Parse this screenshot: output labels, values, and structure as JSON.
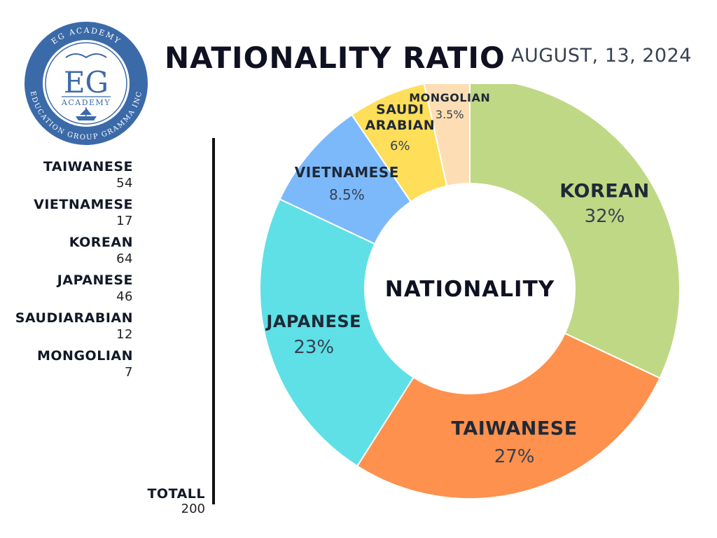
{
  "logo": {
    "ring_top_text": "EG ACADEMY",
    "ring_bottom_text": "EDUCATION GROUP GRAMMA INC",
    "monogram": "EG",
    "sub_text": "ACADEMY",
    "ring_color": "#3b6aa8"
  },
  "title": "NATIONALITY RATIO",
  "date": "AUGUST, 13, 2024",
  "legend": [
    {
      "name": "TAIWANESE",
      "value": "54"
    },
    {
      "name": "VIETNAMESE",
      "value": "17"
    },
    {
      "name": "KOREAN",
      "value": "64"
    },
    {
      "name": "JAPANESE",
      "value": "46"
    },
    {
      "name": "SAUDIARABIAN",
      "value": "12"
    },
    {
      "name": "MONGOLIAN",
      "value": "7"
    }
  ],
  "total": {
    "label": "TOTALL",
    "value": "200"
  },
  "chart_data": {
    "type": "pie",
    "center_label": "NATIONALITY",
    "slices": [
      {
        "name": "KOREAN",
        "display_name": [
          "KOREAN"
        ],
        "value": 32,
        "percent_label": "32%",
        "color": "#bfd885"
      },
      {
        "name": "TAIWANESE",
        "display_name": [
          "TAIWANESE"
        ],
        "value": 27,
        "percent_label": "27%",
        "color": "#fd914d"
      },
      {
        "name": "JAPANESE",
        "display_name": [
          "JAPANESE"
        ],
        "value": 23,
        "percent_label": "23%",
        "color": "#5ee0e6"
      },
      {
        "name": "VIETNAMESE",
        "display_name": [
          "VIETNAMESE"
        ],
        "value": 8.5,
        "percent_label": "8.5%",
        "color": "#7cb9fb"
      },
      {
        "name": "SAUDI ARABIAN",
        "display_name": [
          "SAUDI",
          "ARABIAN"
        ],
        "value": 6,
        "percent_label": "6%",
        "color": "#ffde59"
      },
      {
        "name": "MONGOLIAN",
        "display_name": [
          "MONGOLIAN"
        ],
        "value": 3.5,
        "percent_label": "3.5%",
        "color": "#fddeb4"
      }
    ]
  }
}
